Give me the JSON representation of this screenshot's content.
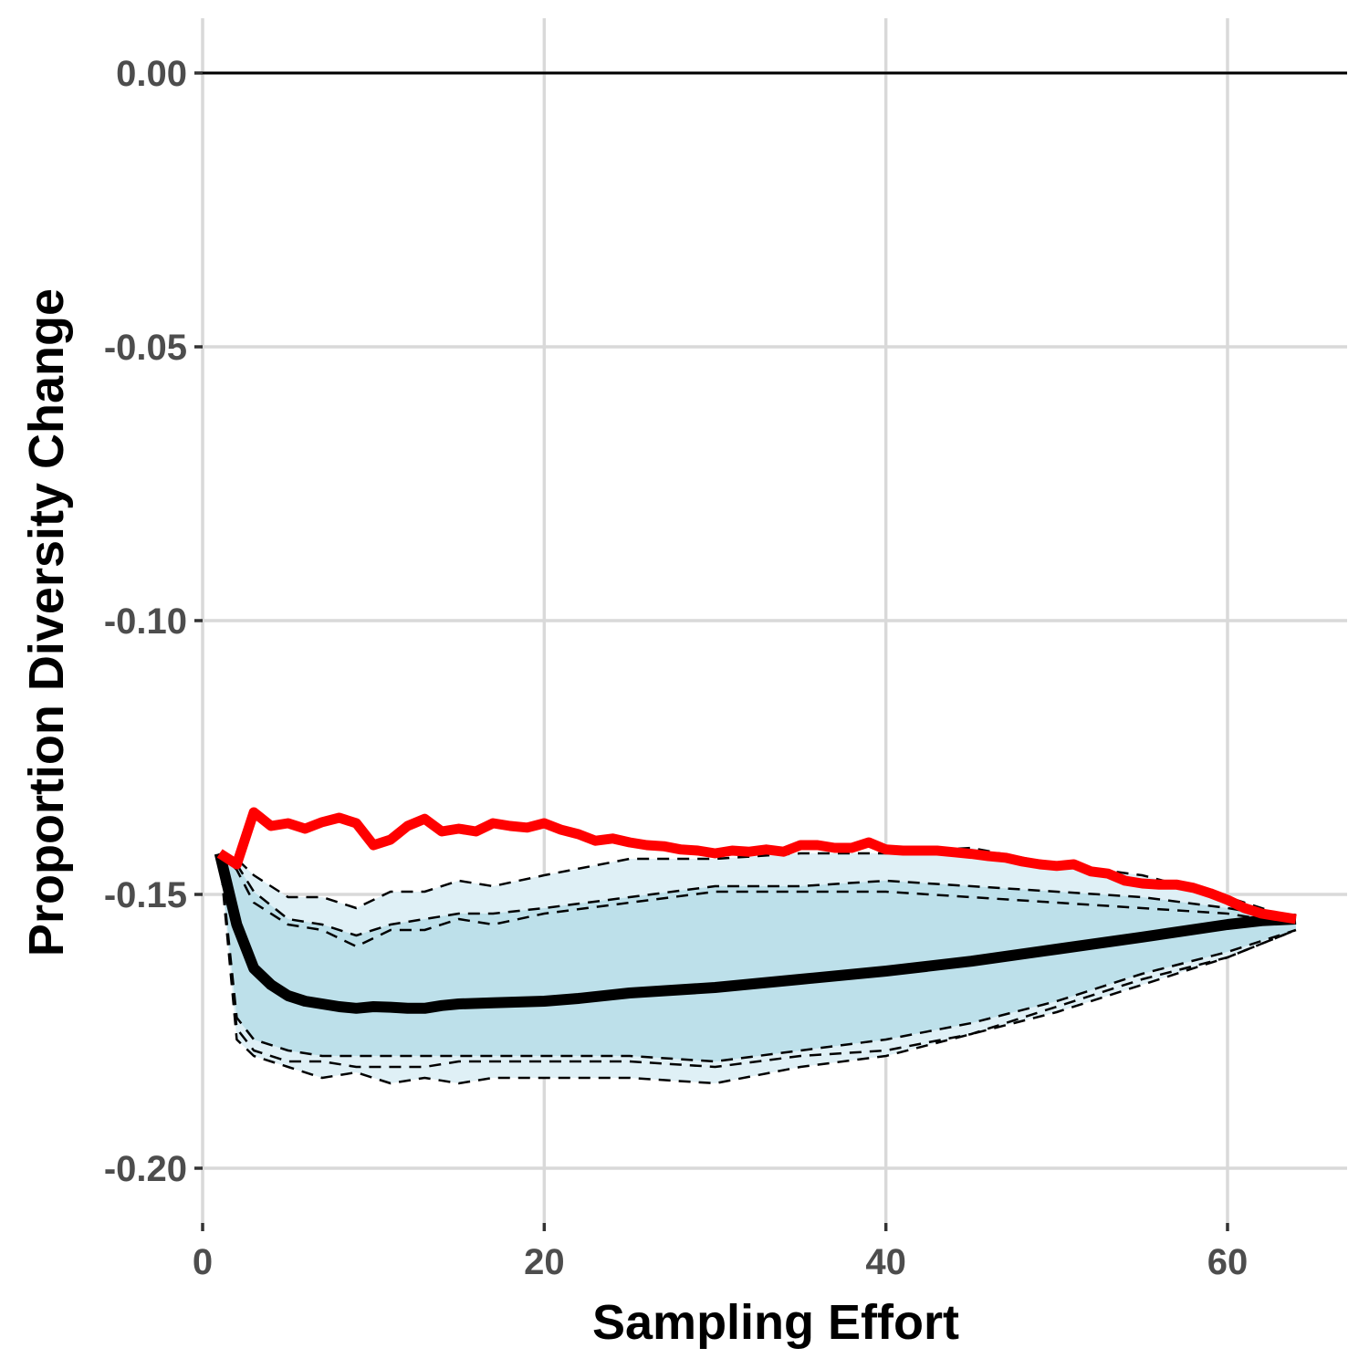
{
  "chart_data": {
    "type": "line",
    "title": "",
    "xlabel": "Sampling Effort",
    "ylabel": "Proportion Diversity Change",
    "xlim": [
      0,
      67
    ],
    "ylim": [
      -0.21,
      0.01
    ],
    "x_ticks": [
      0,
      20,
      40,
      60
    ],
    "x_tick_labels": [
      "0",
      "20",
      "40",
      "60"
    ],
    "y_ticks": [
      0.0,
      -0.05,
      -0.1,
      -0.15,
      -0.2
    ],
    "y_tick_labels": [
      "0.00",
      "-0.05",
      "-0.10",
      "-0.15",
      "-0.20"
    ],
    "grid": true,
    "reference_line": {
      "y": 0.0,
      "color": "#000000"
    },
    "colors": {
      "band_outer": "#dff0f6",
      "band_inner": "#bde0ea",
      "mean_line": "#000000",
      "observed_line": "#ff0000",
      "quantile_lines": "#000000",
      "grid": "#d9d9d9"
    },
    "bands": [
      {
        "x": [
          1,
          2,
          3,
          5,
          7,
          9,
          11,
          13,
          15,
          17,
          20,
          25,
          30,
          35,
          40,
          45,
          50,
          55,
          60,
          64
        ],
        "upper": [
          -0.1425,
          -0.1435,
          -0.1465,
          -0.1505,
          -0.1505,
          -0.1525,
          -0.1495,
          -0.1495,
          -0.1475,
          -0.1485,
          -0.1465,
          -0.1435,
          -0.1435,
          -0.1425,
          -0.1425,
          -0.1415,
          -0.1445,
          -0.1465,
          -0.1505,
          -0.1545
        ],
        "lower": [
          -0.1425,
          -0.1765,
          -0.1795,
          -0.1815,
          -0.1835,
          -0.1825,
          -0.1845,
          -0.1835,
          -0.1845,
          -0.1835,
          -0.1835,
          -0.1835,
          -0.1845,
          -0.1815,
          -0.1795,
          -0.1755,
          -0.1715,
          -0.1665,
          -0.1615,
          -0.1565
        ]
      },
      {
        "x": [
          1,
          2,
          3,
          5,
          7,
          9,
          11,
          13,
          15,
          17,
          20,
          25,
          30,
          35,
          40,
          45,
          50,
          55,
          60,
          64
        ],
        "upper": [
          -0.1425,
          -0.1445,
          -0.1495,
          -0.1545,
          -0.1555,
          -0.1575,
          -0.1555,
          -0.1545,
          -0.1535,
          -0.1535,
          -0.1525,
          -0.1505,
          -0.1485,
          -0.1485,
          -0.1475,
          -0.1485,
          -0.1495,
          -0.1505,
          -0.1525,
          -0.1545
        ],
        "lower": [
          -0.1425,
          -0.1725,
          -0.1765,
          -0.1785,
          -0.1795,
          -0.1795,
          -0.1795,
          -0.1795,
          -0.1795,
          -0.1795,
          -0.1795,
          -0.1795,
          -0.1805,
          -0.1785,
          -0.1765,
          -0.1735,
          -0.1695,
          -0.1645,
          -0.1605,
          -0.1565
        ]
      }
    ],
    "series": [
      {
        "x": [
          1,
          2,
          3,
          5,
          7,
          9,
          11,
          13,
          15,
          17,
          20,
          25,
          30,
          35,
          40,
          45,
          50,
          55,
          60,
          64
        ],
        "values": [
          -0.1425,
          -0.1435,
          -0.1465,
          -0.1505,
          -0.1505,
          -0.1525,
          -0.1495,
          -0.1495,
          -0.1475,
          -0.1485,
          -0.1465,
          -0.1435,
          -0.1435,
          -0.1425,
          -0.1425,
          -0.1415,
          -0.1445,
          -0.1465,
          -0.1505,
          -0.1545
        ],
        "style": "dashed"
      },
      {
        "x": [
          1,
          2,
          3,
          5,
          7,
          9,
          11,
          13,
          15,
          17,
          20,
          25,
          30,
          35,
          40,
          45,
          50,
          55,
          60,
          64
        ],
        "values": [
          -0.1425,
          -0.1445,
          -0.1495,
          -0.1545,
          -0.1555,
          -0.1575,
          -0.1555,
          -0.1545,
          -0.1535,
          -0.1535,
          -0.1525,
          -0.1505,
          -0.1485,
          -0.1485,
          -0.1475,
          -0.1485,
          -0.1495,
          -0.1505,
          -0.1525,
          -0.1545
        ],
        "style": "dashed"
      },
      {
        "x": [
          1,
          2,
          3,
          5,
          7,
          9,
          11,
          13,
          15,
          17,
          20,
          25,
          30,
          35,
          40,
          45,
          50,
          55,
          60,
          64
        ],
        "values": [
          -0.1425,
          -0.1455,
          -0.1515,
          -0.1555,
          -0.1565,
          -0.1595,
          -0.1565,
          -0.1565,
          -0.1545,
          -0.1555,
          -0.1535,
          -0.1515,
          -0.1495,
          -0.1495,
          -0.1495,
          -0.1505,
          -0.1515,
          -0.1525,
          -0.1535,
          -0.1555
        ],
        "style": "dashed"
      },
      {
        "x": [
          1,
          2,
          3,
          5,
          7,
          9,
          11,
          13,
          15,
          17,
          20,
          25,
          30,
          35,
          40,
          45,
          50,
          55,
          60,
          64
        ],
        "values": [
          -0.1425,
          -0.1725,
          -0.1765,
          -0.1785,
          -0.1795,
          -0.1795,
          -0.1795,
          -0.1795,
          -0.1795,
          -0.1795,
          -0.1795,
          -0.1795,
          -0.1805,
          -0.1785,
          -0.1765,
          -0.1735,
          -0.1695,
          -0.1645,
          -0.1605,
          -0.1565
        ],
        "style": "dashed"
      },
      {
        "x": [
          1,
          2,
          3,
          5,
          7,
          9,
          11,
          13,
          15,
          17,
          20,
          25,
          30,
          35,
          40,
          45,
          50,
          55,
          60,
          64
        ],
        "values": [
          -0.1425,
          -0.1745,
          -0.1785,
          -0.1805,
          -0.1805,
          -0.1815,
          -0.1815,
          -0.1815,
          -0.1805,
          -0.1805,
          -0.1805,
          -0.1805,
          -0.1815,
          -0.1795,
          -0.1785,
          -0.1755,
          -0.1705,
          -0.1655,
          -0.1615,
          -0.1565
        ],
        "style": "dashed"
      },
      {
        "x": [
          1,
          2,
          3,
          5,
          7,
          9,
          11,
          13,
          15,
          17,
          20,
          25,
          30,
          35,
          40,
          45,
          50,
          55,
          60,
          64
        ],
        "values": [
          -0.1425,
          -0.1765,
          -0.1795,
          -0.1815,
          -0.1835,
          -0.1825,
          -0.1845,
          -0.1835,
          -0.1845,
          -0.1835,
          -0.1835,
          -0.1835,
          -0.1845,
          -0.1815,
          -0.1795,
          -0.1755,
          -0.1715,
          -0.1665,
          -0.1615,
          -0.1565
        ],
        "style": "dashed"
      },
      {
        "x": [
          1,
          2,
          3,
          4,
          5,
          6,
          7,
          8,
          9,
          10,
          11,
          12,
          13,
          14,
          15,
          17,
          20,
          22,
          25,
          30,
          35,
          40,
          45,
          50,
          55,
          60,
          62,
          64
        ],
        "values": [
          -0.1425,
          -0.1555,
          -0.1635,
          -0.1665,
          -0.1685,
          -0.1695,
          -0.17,
          -0.1705,
          -0.1708,
          -0.1705,
          -0.1706,
          -0.1708,
          -0.1708,
          -0.1703,
          -0.17,
          -0.1698,
          -0.1695,
          -0.169,
          -0.168,
          -0.167,
          -0.1655,
          -0.164,
          -0.1622,
          -0.16,
          -0.1578,
          -0.1555,
          -0.1548,
          -0.1545
        ],
        "style": "bold"
      },
      {
        "x": [
          1,
          2,
          3,
          4,
          5,
          6,
          7,
          8,
          9,
          10,
          11,
          12,
          13,
          14,
          15,
          16,
          17,
          18,
          19,
          20,
          21,
          22,
          23,
          24,
          25,
          26,
          27,
          28,
          29,
          30,
          31,
          32,
          33,
          34,
          35,
          36,
          37,
          38,
          39,
          40,
          41,
          42,
          43,
          44,
          45,
          46,
          47,
          48,
          49,
          50,
          51,
          52,
          53,
          54,
          55,
          56,
          57,
          58,
          59,
          60,
          61,
          62,
          63,
          64
        ],
        "values": [
          -0.1425,
          -0.1445,
          -0.135,
          -0.1375,
          -0.137,
          -0.138,
          -0.1368,
          -0.136,
          -0.137,
          -0.141,
          -0.14,
          -0.1375,
          -0.1362,
          -0.1385,
          -0.138,
          -0.1385,
          -0.137,
          -0.1375,
          -0.1378,
          -0.137,
          -0.1382,
          -0.139,
          -0.1402,
          -0.1398,
          -0.1405,
          -0.141,
          -0.1412,
          -0.1418,
          -0.142,
          -0.1425,
          -0.142,
          -0.1422,
          -0.1418,
          -0.1422,
          -0.141,
          -0.141,
          -0.1415,
          -0.1415,
          -0.1405,
          -0.1418,
          -0.142,
          -0.142,
          -0.142,
          -0.1423,
          -0.1426,
          -0.143,
          -0.1433,
          -0.144,
          -0.1445,
          -0.1448,
          -0.1445,
          -0.1458,
          -0.1462,
          -0.1475,
          -0.148,
          -0.1482,
          -0.1482,
          -0.1488,
          -0.1498,
          -0.151,
          -0.1525,
          -0.1535,
          -0.154,
          -0.1545
        ],
        "style": "observed"
      }
    ]
  }
}
